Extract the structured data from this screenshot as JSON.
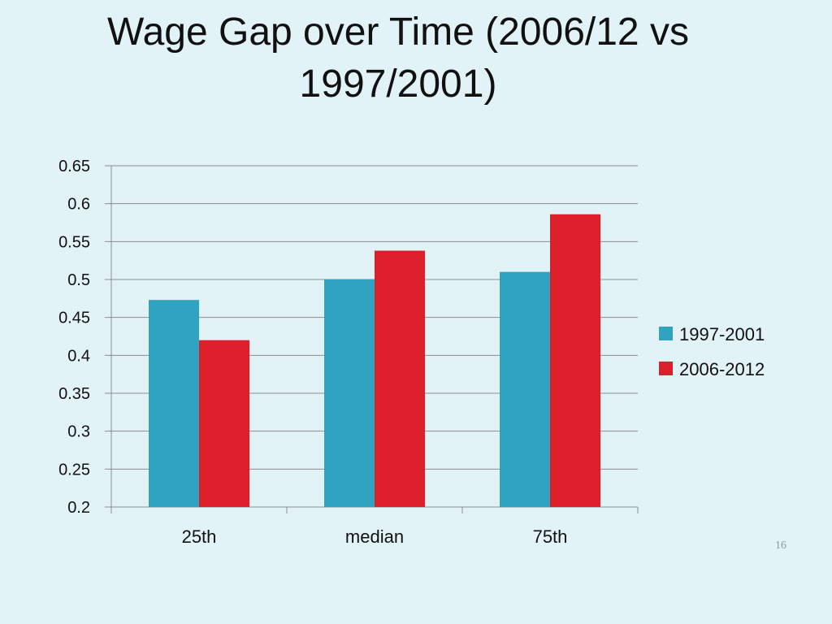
{
  "slide": {
    "title_line1": "Wage Gap over Time (2006/12 vs",
    "title_line2": "1997/2001)",
    "page_number": "16"
  },
  "colors": {
    "background": "#e2f3f8",
    "series_1997_2001": "#2fa3c0",
    "series_2006_2012": "#dc1f2a",
    "gridline": "#8c8c8c"
  },
  "chart_data": {
    "type": "bar",
    "title": "Wage Gap over Time (2006/12 vs 1997/2001)",
    "xlabel": "",
    "ylabel": "",
    "categories": [
      "25th",
      "median",
      "75th"
    ],
    "series": [
      {
        "name": "1997-2001",
        "values": [
          0.473,
          0.5,
          0.51
        ],
        "color": "#2fa3c0"
      },
      {
        "name": "2006-2012",
        "values": [
          0.42,
          0.538,
          0.586
        ],
        "color": "#dc1f2a"
      }
    ],
    "ylim": [
      0.2,
      0.65
    ],
    "ytick_labels": [
      "0.2",
      "0.25",
      "0.3",
      "0.35",
      "0.4",
      "0.45",
      "0.5",
      "0.55",
      "0.6",
      "0.65"
    ],
    "grid": true,
    "legend_position": "right"
  }
}
